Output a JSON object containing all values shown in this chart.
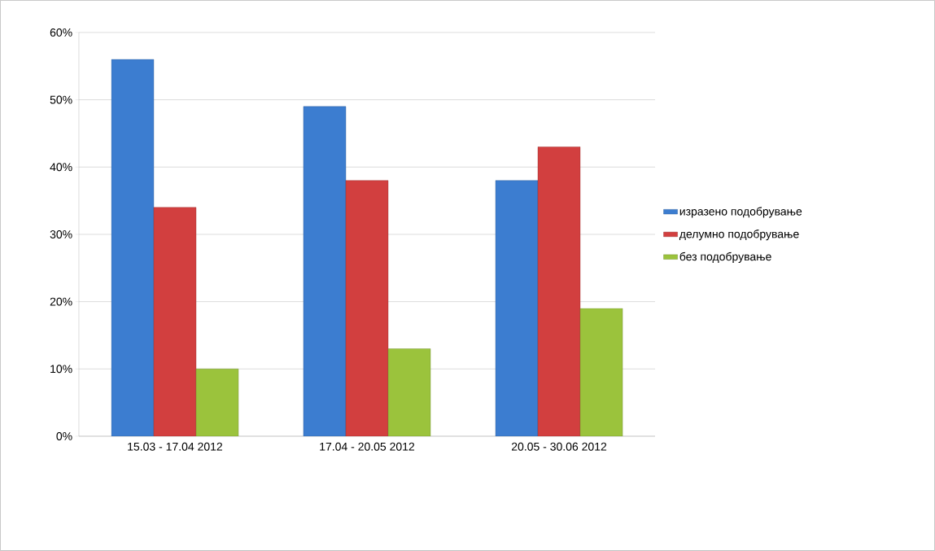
{
  "chart_data": {
    "type": "bar",
    "categories": [
      "15.03 - 17.04 2012",
      "17.04 - 20.05 2012",
      "20.05 - 30.06 2012"
    ],
    "series": [
      {
        "name": "изразено подобрување",
        "color": "#3c7dd0",
        "values": [
          56,
          49,
          38
        ]
      },
      {
        "name": "делумно подобрување",
        "color": "#d23f3f",
        "values": [
          34,
          38,
          43
        ]
      },
      {
        "name": "без подобрување",
        "color": "#9bc33c",
        "values": [
          10,
          13,
          19
        ]
      }
    ],
    "ylim": [
      0,
      60
    ],
    "yticks": [
      {
        "value": 0,
        "label": "0%"
      },
      {
        "value": 10,
        "label": "10%"
      },
      {
        "value": 20,
        "label": "20%"
      },
      {
        "value": 30,
        "label": "30%"
      },
      {
        "value": 40,
        "label": "40%"
      },
      {
        "value": 50,
        "label": "50%"
      },
      {
        "value": 60,
        "label": "60%"
      }
    ],
    "grid": "y",
    "legend": "right"
  }
}
